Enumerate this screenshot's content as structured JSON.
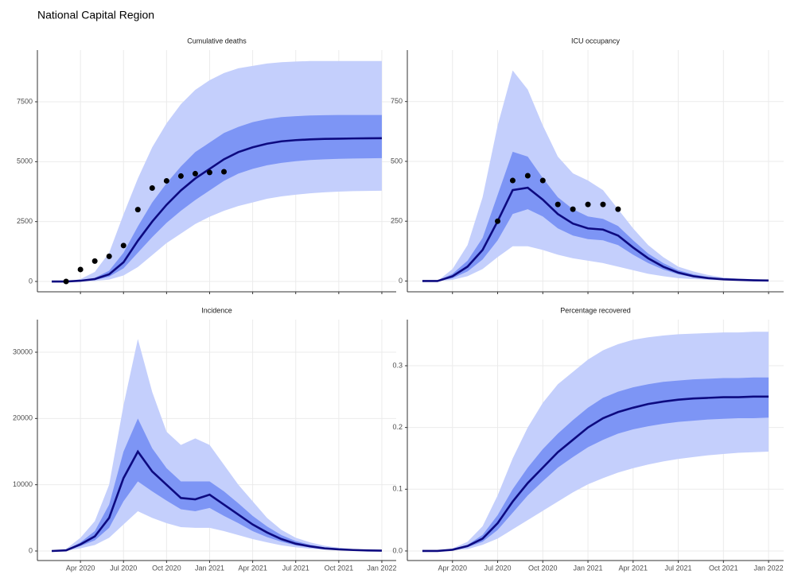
{
  "title": "National Capital Region",
  "chart_data": [
    {
      "type": "line",
      "title": "Cumulative deaths",
      "x": [
        "2020-02",
        "2020-03",
        "2020-04",
        "2020-05",
        "2020-06",
        "2020-07",
        "2020-08",
        "2020-09",
        "2020-10",
        "2020-11",
        "2020-12",
        "2021-01",
        "2021-02",
        "2021-03",
        "2021-04",
        "2021-05",
        "2021-06",
        "2021-07",
        "2021-08",
        "2021-09",
        "2021-10",
        "2021-11",
        "2021-12",
        "2022-01"
      ],
      "series": [
        {
          "color": "#0d0a80",
          "values": [
            0,
            0,
            30,
            100,
            300,
            800,
            1700,
            2500,
            3200,
            3800,
            4300,
            4700,
            5100,
            5400,
            5600,
            5750,
            5850,
            5900,
            5930,
            5950,
            5960,
            5970,
            5975,
            5980
          ]
        }
      ],
      "bands": [
        {
          "color": "#c4cffc",
          "lower": [
            0,
            0,
            0,
            20,
            80,
            250,
            600,
            1100,
            1600,
            2000,
            2400,
            2700,
            2950,
            3150,
            3300,
            3450,
            3550,
            3620,
            3680,
            3720,
            3750,
            3770,
            3780,
            3790
          ],
          "upper": [
            0,
            0,
            100,
            400,
            1200,
            2800,
            4300,
            5600,
            6600,
            7400,
            8000,
            8400,
            8700,
            8900,
            9000,
            9100,
            9150,
            9180,
            9200,
            9200,
            9200,
            9200,
            9200,
            9200
          ]
        },
        {
          "color": "#7d95f5",
          "lower": [
            0,
            0,
            15,
            60,
            200,
            550,
            1200,
            1850,
            2450,
            2950,
            3400,
            3800,
            4200,
            4500,
            4700,
            4850,
            4950,
            5020,
            5070,
            5100,
            5120,
            5130,
            5140,
            5150
          ],
          "upper": [
            0,
            0,
            50,
            150,
            450,
            1200,
            2300,
            3300,
            4100,
            4800,
            5400,
            5800,
            6200,
            6450,
            6650,
            6780,
            6860,
            6900,
            6930,
            6940,
            6950,
            6950,
            6950,
            6950
          ]
        }
      ],
      "points": {
        "color": "#000000",
        "x": [
          "2020-03",
          "2020-04",
          "2020-05",
          "2020-06",
          "2020-07",
          "2020-08",
          "2020-09",
          "2020-10",
          "2020-11",
          "2020-12",
          "2021-01",
          "2021-02"
        ],
        "values": [
          0,
          500,
          850,
          1050,
          1500,
          3000,
          3900,
          4200,
          4400,
          4500,
          4550,
          4580
        ]
      },
      "xlim": [
        "2020-01",
        "2022-02"
      ],
      "xticks": [
        "2020-04",
        "2020-07",
        "2020-10",
        "2021-01",
        "2021-04",
        "2021-07",
        "2021-10",
        "2022-01"
      ],
      "ylim": [
        -431,
        9658
      ],
      "yticks": [
        0,
        2500,
        5000,
        7500
      ],
      "grid": true
    },
    {
      "type": "line",
      "title": "ICU occupancy",
      "x": [
        "2020-02",
        "2020-03",
        "2020-04",
        "2020-05",
        "2020-06",
        "2020-07",
        "2020-08",
        "2020-09",
        "2020-10",
        "2020-11",
        "2020-12",
        "2021-01",
        "2021-02",
        "2021-03",
        "2021-04",
        "2021-05",
        "2021-06",
        "2021-07",
        "2021-08",
        "2021-09",
        "2021-10",
        "2021-11",
        "2021-12",
        "2022-01"
      ],
      "series": [
        {
          "color": "#0d0a80",
          "values": [
            0,
            0,
            20,
            60,
            130,
            250,
            380,
            390,
            340,
            280,
            240,
            220,
            215,
            190,
            140,
            95,
            60,
            35,
            20,
            12,
            7,
            5,
            3,
            2
          ]
        }
      ],
      "bands": [
        {
          "color": "#c4cffc",
          "lower": [
            0,
            0,
            5,
            20,
            50,
            100,
            145,
            145,
            130,
            110,
            95,
            85,
            75,
            60,
            45,
            30,
            20,
            12,
            8,
            5,
            3,
            2,
            1,
            1
          ],
          "upper": [
            0,
            0,
            50,
            150,
            350,
            650,
            880,
            800,
            650,
            520,
            450,
            420,
            380,
            300,
            220,
            150,
            100,
            60,
            40,
            25,
            15,
            10,
            8,
            5
          ]
        },
        {
          "color": "#7d95f5",
          "lower": [
            0,
            0,
            12,
            40,
            90,
            170,
            280,
            300,
            270,
            220,
            190,
            175,
            170,
            150,
            110,
            75,
            48,
            28,
            16,
            10,
            6,
            4,
            2,
            1
          ],
          "upper": [
            0,
            0,
            30,
            85,
            180,
            360,
            540,
            520,
            430,
            350,
            300,
            270,
            260,
            230,
            170,
            115,
            75,
            45,
            28,
            17,
            10,
            7,
            5,
            3
          ]
        }
      ],
      "points": {
        "color": "#000000",
        "x": [
          "2020-07",
          "2020-08",
          "2020-09",
          "2020-10",
          "2020-11",
          "2020-12",
          "2021-01",
          "2021-02",
          "2021-03"
        ],
        "values": [
          250,
          420,
          440,
          420,
          320,
          300,
          320,
          320,
          300
        ]
      },
      "xlim": [
        "2020-01",
        "2022-02"
      ],
      "xticks": [
        "2020-04",
        "2020-07",
        "2020-10",
        "2021-01",
        "2021-04",
        "2021-07",
        "2021-10",
        "2022-01"
      ],
      "ylim": [
        -45,
        965
      ],
      "yticks": [
        0,
        250,
        500,
        750
      ],
      "grid": true
    },
    {
      "type": "line",
      "title": "Incidence",
      "x": [
        "2020-02",
        "2020-03",
        "2020-04",
        "2020-05",
        "2020-06",
        "2020-07",
        "2020-08",
        "2020-09",
        "2020-10",
        "2020-11",
        "2020-12",
        "2021-01",
        "2021-02",
        "2021-03",
        "2021-04",
        "2021-05",
        "2021-06",
        "2021-07",
        "2021-08",
        "2021-09",
        "2021-10",
        "2021-11",
        "2021-12",
        "2022-01"
      ],
      "series": [
        {
          "color": "#0d0a80",
          "values": [
            0,
            100,
            1000,
            2200,
            5000,
            11000,
            15000,
            12000,
            10000,
            8000,
            7800,
            8500,
            7000,
            5500,
            4000,
            2800,
            1800,
            1100,
            700,
            400,
            250,
            150,
            80,
            50
          ]
        }
      ],
      "bands": [
        {
          "color": "#c4cffc",
          "lower": [
            0,
            30,
            400,
            900,
            2000,
            4000,
            6000,
            5000,
            4200,
            3600,
            3500,
            3500,
            3000,
            2400,
            1800,
            1300,
            850,
            550,
            350,
            200,
            120,
            70,
            40,
            20
          ],
          "upper": [
            0,
            300,
            2000,
            4500,
            10000,
            22000,
            32000,
            24000,
            18000,
            16000,
            17000,
            16000,
            13000,
            10000,
            7500,
            5000,
            3200,
            2000,
            1300,
            800,
            500,
            300,
            180,
            100
          ]
        },
        {
          "color": "#7d95f5",
          "lower": [
            0,
            70,
            750,
            1600,
            3500,
            7500,
            10500,
            9000,
            7600,
            6300,
            6000,
            6500,
            5300,
            4200,
            3000,
            2100,
            1400,
            850,
            550,
            320,
            190,
            110,
            60,
            35
          ],
          "upper": [
            0,
            150,
            1300,
            3000,
            7000,
            15000,
            20000,
            15500,
            12500,
            10500,
            10500,
            10500,
            9000,
            7200,
            5300,
            3700,
            2400,
            1500,
            950,
            550,
            350,
            200,
            120,
            70
          ]
        }
      ],
      "xlim": [
        "2020-01",
        "2022-02"
      ],
      "xticks": [
        {
          "value": "2020-04",
          "label": "Apr 2020"
        },
        {
          "value": "2020-07",
          "label": "Jul 2020"
        },
        {
          "value": "2020-10",
          "label": "Oct 2020"
        },
        {
          "value": "2021-01",
          "label": "Jan 2021"
        },
        {
          "value": "2021-04",
          "label": "Apr 2021"
        },
        {
          "value": "2021-07",
          "label": "Jul 2021"
        },
        {
          "value": "2021-10",
          "label": "Oct 2021"
        },
        {
          "value": "2022-01",
          "label": "Jan 2022"
        }
      ],
      "ylim": [
        -1440,
        34920
      ],
      "yticks": [
        0,
        10000,
        20000,
        30000
      ],
      "grid": true
    },
    {
      "type": "line",
      "title": "Percentage recovered",
      "x": [
        "2020-02",
        "2020-03",
        "2020-04",
        "2020-05",
        "2020-06",
        "2020-07",
        "2020-08",
        "2020-09",
        "2020-10",
        "2020-11",
        "2020-12",
        "2021-01",
        "2021-02",
        "2021-03",
        "2021-04",
        "2021-05",
        "2021-06",
        "2021-07",
        "2021-08",
        "2021-09",
        "2021-10",
        "2021-11",
        "2021-12",
        "2022-01"
      ],
      "series": [
        {
          "color": "#0d0a80",
          "values": [
            0,
            0,
            0.002,
            0.008,
            0.02,
            0.045,
            0.08,
            0.11,
            0.135,
            0.16,
            0.18,
            0.2,
            0.215,
            0.225,
            0.232,
            0.238,
            0.242,
            0.245,
            0.247,
            0.248,
            0.249,
            0.249,
            0.25,
            0.25
          ]
        }
      ],
      "bands": [
        {
          "color": "#c4cffc",
          "lower": [
            0,
            0,
            0.001,
            0.003,
            0.01,
            0.02,
            0.035,
            0.05,
            0.065,
            0.08,
            0.095,
            0.108,
            0.118,
            0.127,
            0.134,
            0.14,
            0.145,
            0.149,
            0.152,
            0.155,
            0.157,
            0.159,
            0.16,
            0.161
          ],
          "upper": [
            0,
            0,
            0.004,
            0.015,
            0.04,
            0.09,
            0.15,
            0.2,
            0.24,
            0.27,
            0.29,
            0.31,
            0.325,
            0.335,
            0.342,
            0.346,
            0.349,
            0.351,
            0.352,
            0.353,
            0.354,
            0.354,
            0.355,
            0.355
          ]
        },
        {
          "color": "#7d95f5",
          "lower": [
            0,
            0,
            0.0015,
            0.006,
            0.015,
            0.034,
            0.062,
            0.09,
            0.113,
            0.135,
            0.152,
            0.168,
            0.18,
            0.19,
            0.197,
            0.202,
            0.206,
            0.209,
            0.211,
            0.213,
            0.214,
            0.215,
            0.215,
            0.216
          ],
          "upper": [
            0,
            0,
            0.003,
            0.01,
            0.026,
            0.058,
            0.1,
            0.135,
            0.165,
            0.19,
            0.212,
            0.232,
            0.248,
            0.258,
            0.265,
            0.27,
            0.274,
            0.276,
            0.278,
            0.279,
            0.28,
            0.28,
            0.281,
            0.281
          ]
        }
      ],
      "xlim": [
        "2020-01",
        "2022-02"
      ],
      "xticks": [
        {
          "value": "2020-04",
          "label": "Apr 2020"
        },
        {
          "value": "2020-07",
          "label": "Jul 2020"
        },
        {
          "value": "2020-10",
          "label": "Oct 2020"
        },
        {
          "value": "2021-01",
          "label": "Jan 2021"
        },
        {
          "value": "2021-04",
          "label": "Apr 2021"
        },
        {
          "value": "2021-07",
          "label": "Jul 2021"
        },
        {
          "value": "2021-10",
          "label": "Oct 2021"
        },
        {
          "value": "2022-01",
          "label": "Jan 2022"
        }
      ],
      "ylim": [
        -0.0155,
        0.3747
      ],
      "yticks": [
        {
          "value": 0,
          "label": "0.0"
        },
        0.1,
        0.2,
        0.3
      ],
      "grid": true
    }
  ]
}
